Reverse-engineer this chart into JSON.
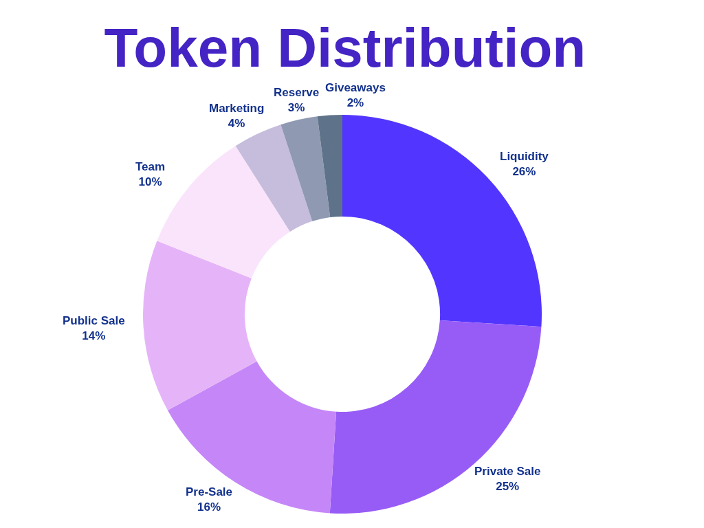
{
  "chart_data": {
    "type": "donut",
    "title": "Token Distribution",
    "categories": [
      "Liquidity",
      "Private Sale",
      "Pre-Sale",
      "Public Sale",
      "Team",
      "Marketing",
      "Reserve",
      "Giveaways"
    ],
    "values": [
      26,
      25,
      16,
      14,
      10,
      4,
      3,
      2
    ],
    "value_labels": [
      "26%",
      "25%",
      "16%",
      "14%",
      "10%",
      "4%",
      "3%",
      "2%"
    ],
    "colors": [
      "#5236ff",
      "#985cf6",
      "#c587f7",
      "#e5b4f8",
      "#fae4fc",
      "#c6bcdc",
      "#9099b2",
      "#5e7389"
    ],
    "legend": false
  }
}
